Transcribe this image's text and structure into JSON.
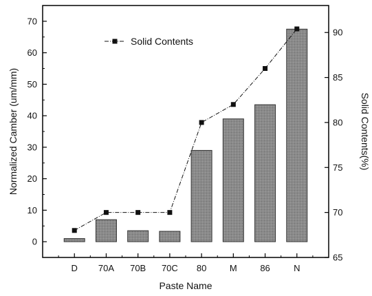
{
  "chart_data": {
    "type": "bar",
    "categories": [
      "D",
      "70A",
      "70B",
      "70C",
      "80",
      "M",
      "86",
      "N"
    ],
    "xlabel": "Paste Name",
    "ylabel": "Normalized Camber (um/mm)",
    "y2label": "Solid Contents(%)",
    "ylim": [
      -5,
      75
    ],
    "y2lim": [
      65,
      93
    ],
    "yticks": [
      0,
      10,
      20,
      30,
      40,
      50,
      60,
      70
    ],
    "y2ticks": [
      65,
      70,
      75,
      80,
      85,
      90
    ],
    "grid": false,
    "series": [
      {
        "kind": "bar",
        "axis": "left",
        "values": [
          1,
          7,
          3.5,
          3.3,
          29,
          39,
          43.5,
          67.5
        ]
      },
      {
        "kind": "line",
        "axis": "right",
        "name": "Solid Contents",
        "marker": "square",
        "values": [
          68,
          70,
          70,
          70,
          80,
          82,
          86,
          90.4
        ]
      }
    ],
    "legend": {
      "placement": "top-left",
      "entries": [
        "Solid Contents"
      ]
    },
    "colors": {
      "bar_fill": "#8a8a8a",
      "bar_edge": "#333333",
      "line": "#111111",
      "axis": "#000000"
    }
  }
}
